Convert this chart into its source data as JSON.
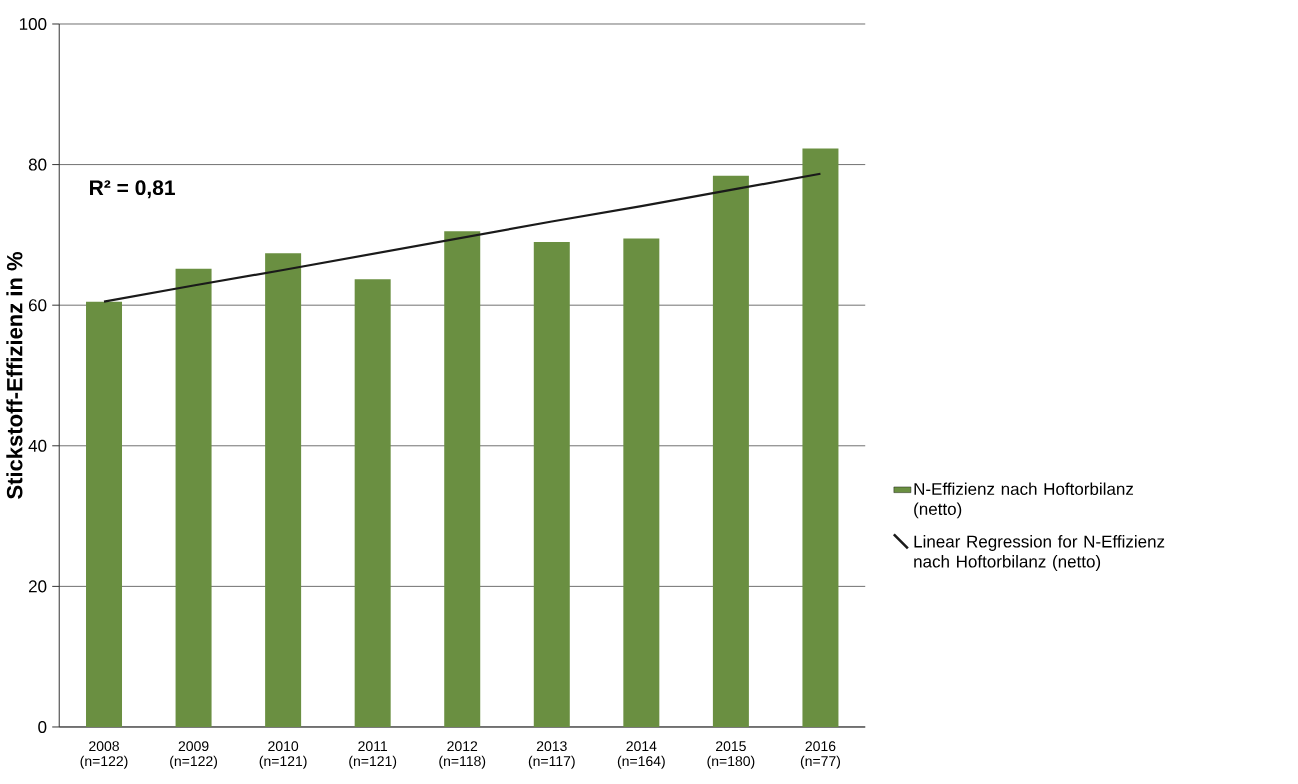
{
  "chart_data": {
    "type": "bar",
    "ylabel": "Stickstoff-Effizienz in %",
    "categories": [
      "2008 (n=122)",
      "2009 (n=122)",
      "2010 (n=121)",
      "2011 (n=121)",
      "2012 (n=118)",
      "2013 (n=117)",
      "2014 (n=164)",
      "2015 (n=180)",
      "2016 (n=77)"
    ],
    "series": [
      {
        "name": "N-Effizienz nach Hoftorbilanz (netto)",
        "color": "#6a8f41",
        "values": [
          60.5,
          65.2,
          67.4,
          63.7,
          70.5,
          69.0,
          69.5,
          78.4,
          82.3
        ]
      },
      {
        "name": "Linear Regression for N-Effizienz nach Hoftorbilanz (netto)",
        "type": "line",
        "color": "#1a1a1a",
        "values": [
          60.5,
          62.8,
          65.0,
          67.3,
          69.6,
          71.9,
          74.1,
          76.4,
          78.7
        ]
      }
    ],
    "ylim": [
      0,
      100
    ],
    "yticks": [
      0,
      20,
      40,
      60,
      80,
      100
    ],
    "grid": "y",
    "legend": "right",
    "annotations": [
      "R² = 0,81"
    ]
  }
}
